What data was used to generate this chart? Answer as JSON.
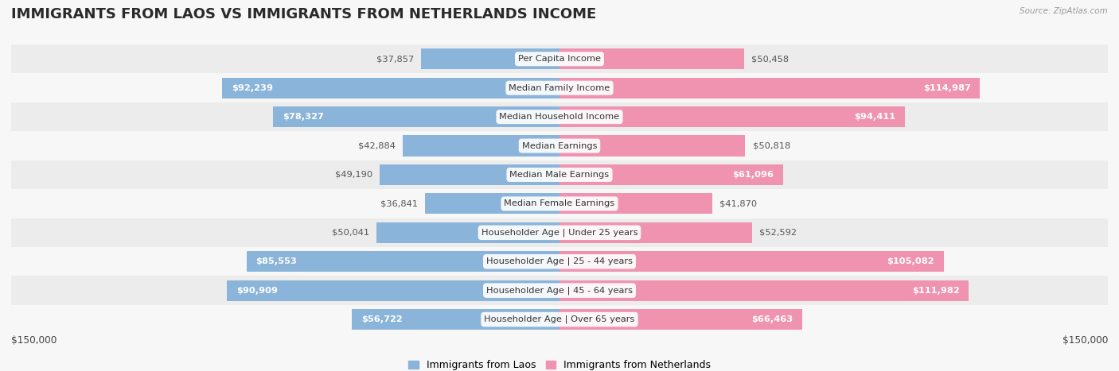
{
  "title": "IMMIGRANTS FROM LAOS VS IMMIGRANTS FROM NETHERLANDS INCOME",
  "source": "Source: ZipAtlas.com",
  "categories": [
    "Per Capita Income",
    "Median Family Income",
    "Median Household Income",
    "Median Earnings",
    "Median Male Earnings",
    "Median Female Earnings",
    "Householder Age | Under 25 years",
    "Householder Age | 25 - 44 years",
    "Householder Age | 45 - 64 years",
    "Householder Age | Over 65 years"
  ],
  "laos_values": [
    37857,
    92239,
    78327,
    42884,
    49190,
    36841,
    50041,
    85553,
    90909,
    56722
  ],
  "netherlands_values": [
    50458,
    114987,
    94411,
    50818,
    61096,
    41870,
    52592,
    105082,
    111982,
    66463
  ],
  "laos_color": "#8ab4d9",
  "netherlands_color": "#f093b0",
  "label_color_inside": "#ffffff",
  "label_color_outside": "#555555",
  "max_value": 150000,
  "background_color": "#f7f7f7",
  "row_colors": [
    "#ececec",
    "#f7f7f7"
  ],
  "legend_laos": "Immigrants from Laos",
  "legend_netherlands": "Immigrants from Netherlands",
  "axis_label_left": "$150,000",
  "axis_label_right": "$150,000",
  "title_fontsize": 13,
  "label_fontsize": 8.2,
  "category_fontsize": 8.2,
  "legend_fontsize": 9,
  "inside_threshold": 55000
}
